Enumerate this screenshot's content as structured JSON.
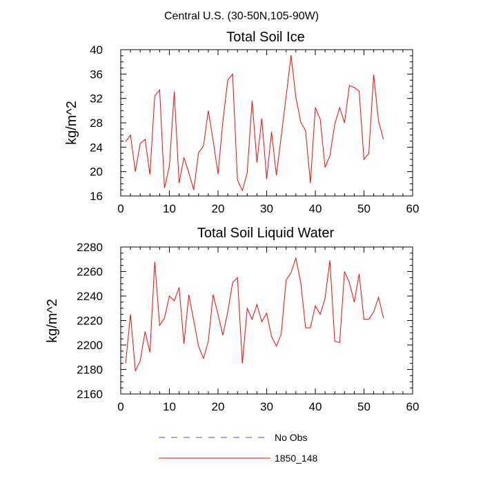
{
  "figure_title": "Central U.S. (30-50N,105-90W)",
  "legend": [
    {
      "label": "No Obs",
      "color": "#4b4bd6",
      "dash": true
    },
    {
      "label": "1850_148",
      "color": "#ff0000",
      "dash": false
    }
  ],
  "chart_data": [
    {
      "type": "line",
      "title": "Total Soil Ice",
      "ylabel": "kg/m^2",
      "xlabel": "",
      "xlim": [
        0,
        60
      ],
      "ylim": [
        16,
        40
      ],
      "xticks": [
        0,
        10,
        20,
        30,
        40,
        50,
        60
      ],
      "yticks": [
        16,
        20,
        24,
        28,
        32,
        36,
        40
      ],
      "series": [
        {
          "name": "1850_148",
          "color": "#ff0000",
          "x": [
            1,
            2,
            3,
            4,
            5,
            6,
            7,
            8,
            9,
            10,
            11,
            12,
            13,
            14,
            15,
            16,
            17,
            18,
            19,
            20,
            21,
            22,
            23,
            24,
            25,
            26,
            27,
            28,
            29,
            30,
            31,
            32,
            33,
            34,
            35,
            36,
            37,
            38,
            39,
            40,
            41,
            42,
            43,
            44,
            45,
            46,
            47,
            48,
            49,
            50,
            51,
            52,
            53,
            54
          ],
          "values": [
            24.9,
            26.0,
            20.0,
            24.6,
            25.3,
            19.5,
            32.4,
            33.4,
            17.3,
            20.9,
            33.1,
            18.1,
            22.3,
            19.8,
            17.0,
            23.1,
            24.2,
            30.0,
            25.1,
            19.6,
            28.2,
            35.0,
            36.0,
            18.6,
            16.9,
            19.8,
            31.6,
            21.5,
            28.7,
            18.8,
            26.5,
            19.4,
            25.8,
            32.3,
            39.1,
            32.2,
            28.1,
            26.7,
            18.1,
            30.5,
            28.6,
            20.7,
            22.6,
            27.8,
            30.5,
            28.0,
            34.1,
            33.8,
            33.2,
            22.0,
            23.0,
            35.9,
            28.3,
            25.3
          ]
        }
      ]
    },
    {
      "type": "line",
      "title": "Total Soil Liquid Water",
      "ylabel": "kg/m^2",
      "xlabel": "",
      "xlim": [
        0,
        60
      ],
      "ylim": [
        2160,
        2280
      ],
      "xticks": [
        0,
        10,
        20,
        30,
        40,
        50,
        60
      ],
      "yticks": [
        2160,
        2180,
        2200,
        2220,
        2240,
        2260,
        2280
      ],
      "series": [
        {
          "name": "1850_148",
          "color": "#ff0000",
          "x": [
            1,
            2,
            3,
            4,
            5,
            6,
            7,
            8,
            9,
            10,
            11,
            12,
            13,
            14,
            15,
            16,
            17,
            18,
            19,
            20,
            21,
            22,
            23,
            24,
            25,
            26,
            27,
            28,
            29,
            30,
            31,
            32,
            33,
            34,
            35,
            36,
            37,
            38,
            39,
            40,
            41,
            42,
            43,
            44,
            45,
            46,
            47,
            48,
            49,
            50,
            51,
            52,
            53,
            54
          ],
          "values": [
            2185,
            2225,
            2179,
            2187,
            2211,
            2194,
            2268,
            2216,
            2222,
            2240,
            2236,
            2247,
            2201,
            2241,
            2220,
            2199,
            2189,
            2203,
            2241,
            2225,
            2208,
            2227,
            2251,
            2255,
            2185,
            2230,
            2221,
            2233,
            2219,
            2226,
            2207,
            2199,
            2209,
            2253,
            2259,
            2271,
            2251,
            2214,
            2214,
            2232,
            2225,
            2238,
            2269,
            2203,
            2202,
            2260,
            2251,
            2235,
            2258,
            2221,
            2221,
            2227,
            2239,
            2222
          ]
        }
      ]
    }
  ]
}
